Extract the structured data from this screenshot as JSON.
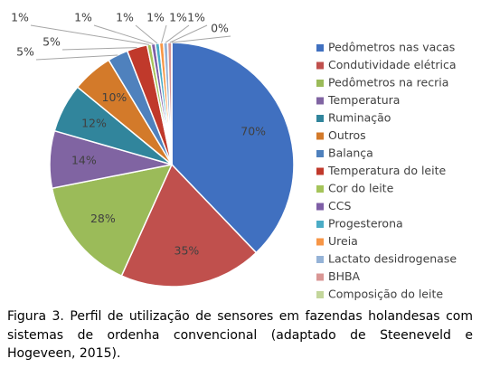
{
  "chart_data": {
    "type": "pie",
    "categories": [
      "Pedômetros nas vacas",
      "Condutividade elétrica",
      "Pedômetros na recria",
      "Temperatura",
      "Ruminação",
      "Outros",
      "Balança",
      "Temperatura do leite",
      "Cor do leite",
      "CCS",
      "Progesterona",
      "Ureia",
      "Lactato desidrogenase",
      "BHBA",
      "Composição do leite"
    ],
    "values": [
      70,
      35,
      28,
      14,
      12,
      10,
      5,
      5,
      1,
      1,
      1,
      1,
      1,
      1,
      0
    ],
    "value_labels": [
      "70%",
      "35%",
      "28%",
      "14%",
      "12%",
      "10%",
      "5%",
      "5%",
      "1%",
      "1%",
      "1%",
      "1%",
      "1%",
      "1%",
      "0%"
    ],
    "colors": [
      "#4070c0",
      "#c0504d",
      "#9bbb59",
      "#8064a2",
      "#31859c",
      "#d37a2a",
      "#4f81bd",
      "#c0392b",
      "#a5c45a",
      "#7e5ea6",
      "#4bacc6",
      "#f79646",
      "#95b3d7",
      "#d99694",
      "#c3d69b"
    ],
    "legend": "right"
  },
  "caption": "Figura 3. Perfil de utilização de sensores em fazendas holandesas com sistemas de ordenha convencional (adaptado de Steeneveld e Hogeveen, 2015)."
}
